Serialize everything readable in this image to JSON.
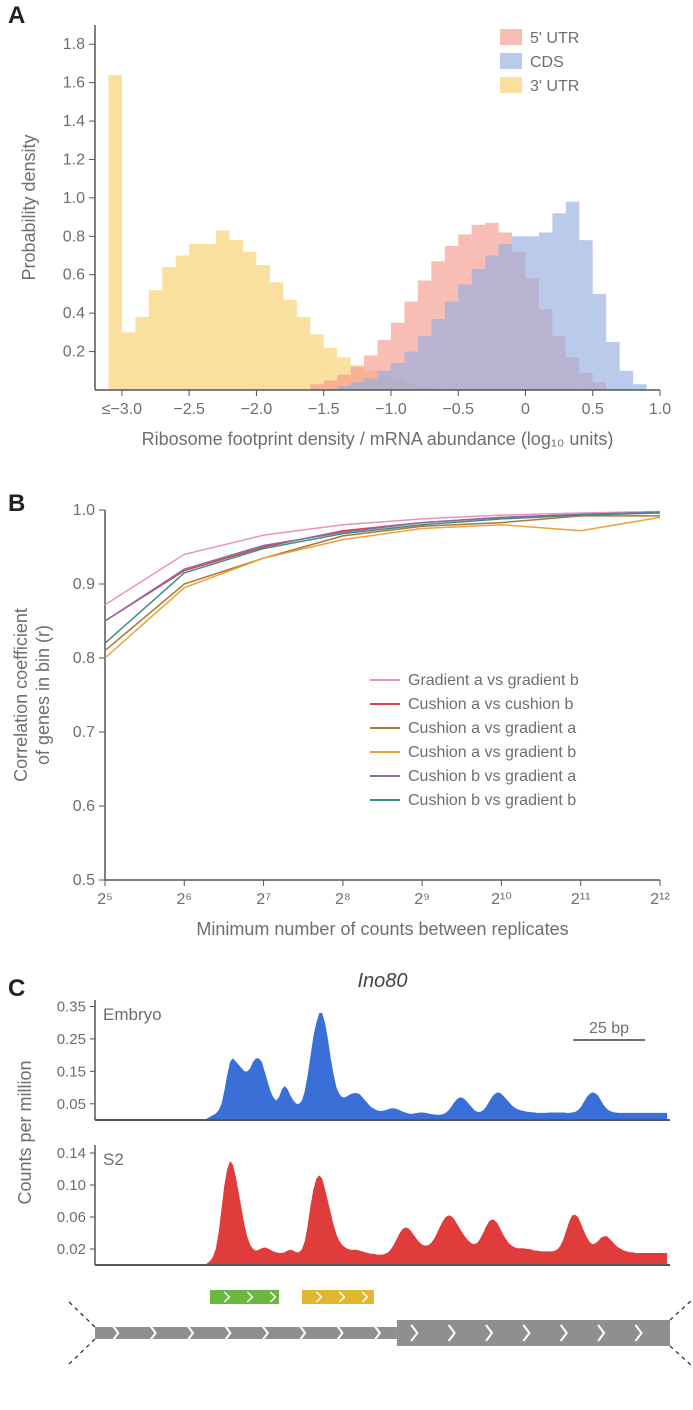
{
  "panelA": {
    "label": "A",
    "type": "histogram",
    "xlabel": "Ribosome footprint density / mRNA abundance (log₁₀ units)",
    "ylabel": "Probability density",
    "label_color": "#6e6e6e",
    "label_fontsize": 18,
    "tick_fontsize": 16,
    "tick_color": "#6e6e6e",
    "axis_color": "#555555",
    "bar_alpha": 0.65,
    "xlim": [
      -3.2,
      1.0
    ],
    "ylim": [
      0,
      1.9
    ],
    "xticks": [
      -3.0,
      -2.5,
      -2.0,
      -1.5,
      -1.0,
      -0.5,
      0,
      0.5,
      1.0
    ],
    "xtick_labels": [
      "≤−3.0",
      "−2.5",
      "−2.0",
      "−1.5",
      "−1.0",
      "−0.5",
      "0",
      "0.5",
      "1.0"
    ],
    "yticks": [
      0.2,
      0.4,
      0.6,
      0.8,
      1.0,
      1.2,
      1.4,
      1.6,
      1.8
    ],
    "bin_width": 0.1,
    "legend": {
      "items": [
        {
          "label": "5' UTR",
          "color": "#f59a8e"
        },
        {
          "label": "CDS",
          "color": "#94aee0"
        },
        {
          "label": "3' UTR",
          "color": "#f7cf6b"
        }
      ],
      "fontsize": 16,
      "text_color": "#6e6e6e"
    },
    "series": [
      {
        "name": "3' UTR",
        "color": "#f7cf6b",
        "bins": [
          [
            -3.1,
            1.64
          ],
          [
            -3.0,
            0.3
          ],
          [
            -2.9,
            0.38
          ],
          [
            -2.8,
            0.52
          ],
          [
            -2.7,
            0.64
          ],
          [
            -2.6,
            0.7
          ],
          [
            -2.5,
            0.76
          ],
          [
            -2.4,
            0.76
          ],
          [
            -2.3,
            0.83
          ],
          [
            -2.2,
            0.78
          ],
          [
            -2.1,
            0.72
          ],
          [
            -2.0,
            0.65
          ],
          [
            -1.9,
            0.56
          ],
          [
            -1.8,
            0.47
          ],
          [
            -1.7,
            0.38
          ],
          [
            -1.6,
            0.29
          ],
          [
            -1.5,
            0.22
          ],
          [
            -1.4,
            0.17
          ],
          [
            -1.3,
            0.13
          ],
          [
            -1.2,
            0.1
          ],
          [
            -1.1,
            0.07
          ],
          [
            -1.0,
            0.05
          ],
          [
            -0.9,
            0.03
          ],
          [
            -0.8,
            0.02
          ]
        ]
      },
      {
        "name": "5' UTR",
        "color": "#f59a8e",
        "bins": [
          [
            -1.6,
            0.03
          ],
          [
            -1.5,
            0.05
          ],
          [
            -1.4,
            0.08
          ],
          [
            -1.3,
            0.12
          ],
          [
            -1.2,
            0.18
          ],
          [
            -1.1,
            0.26
          ],
          [
            -1.0,
            0.35
          ],
          [
            -0.9,
            0.46
          ],
          [
            -0.8,
            0.57
          ],
          [
            -0.7,
            0.67
          ],
          [
            -0.6,
            0.75
          ],
          [
            -0.5,
            0.81
          ],
          [
            -0.4,
            0.86
          ],
          [
            -0.3,
            0.87
          ],
          [
            -0.2,
            0.82
          ],
          [
            -0.1,
            0.72
          ],
          [
            0.0,
            0.58
          ],
          [
            0.1,
            0.42
          ],
          [
            0.2,
            0.28
          ],
          [
            0.3,
            0.17
          ],
          [
            0.4,
            0.09
          ],
          [
            0.5,
            0.04
          ]
        ]
      },
      {
        "name": "CDS",
        "color": "#94aee0",
        "bins": [
          [
            -1.4,
            0.02
          ],
          [
            -1.3,
            0.04
          ],
          [
            -1.2,
            0.06
          ],
          [
            -1.1,
            0.1
          ],
          [
            -1.0,
            0.14
          ],
          [
            -0.9,
            0.2
          ],
          [
            -0.8,
            0.28
          ],
          [
            -0.7,
            0.37
          ],
          [
            -0.6,
            0.46
          ],
          [
            -0.5,
            0.55
          ],
          [
            -0.4,
            0.63
          ],
          [
            -0.3,
            0.7
          ],
          [
            -0.2,
            0.76
          ],
          [
            -0.1,
            0.8
          ],
          [
            0.0,
            0.8
          ],
          [
            0.1,
            0.82
          ],
          [
            0.2,
            0.92
          ],
          [
            0.3,
            0.98
          ],
          [
            0.4,
            0.78
          ],
          [
            0.5,
            0.5
          ],
          [
            0.6,
            0.25
          ],
          [
            0.7,
            0.1
          ],
          [
            0.8,
            0.03
          ]
        ]
      }
    ]
  },
  "panelB": {
    "label": "B",
    "type": "line",
    "xlabel": "Minimum number of counts between replicates",
    "ylabel": "Correlation coefficient\nof genes in bin (r)",
    "label_color": "#6e6e6e",
    "label_fontsize": 18,
    "tick_fontsize": 16,
    "tick_color": "#6e6e6e",
    "axis_color": "#555555",
    "xlim": [
      5,
      12
    ],
    "ylim": [
      0.5,
      1.0
    ],
    "xticks": [
      5,
      6,
      7,
      8,
      9,
      10,
      11,
      12
    ],
    "xtick_labels": [
      "2⁵",
      "2⁶",
      "2⁷",
      "2⁸",
      "2⁹",
      "2¹⁰",
      "2¹¹",
      "2¹²"
    ],
    "yticks": [
      0.5,
      0.6,
      0.7,
      0.8,
      0.9,
      1.0
    ],
    "line_width": 1.5,
    "legend": {
      "fontsize": 16,
      "text_color": "#6e6e6e",
      "swatch_len": 30
    },
    "series": [
      {
        "label": "Gradient a vs gradient b",
        "color": "#e893bd",
        "y": [
          0.872,
          0.94,
          0.966,
          0.98,
          0.988,
          0.993,
          0.996,
          0.998
        ]
      },
      {
        "label": "Cushion a vs cushion b",
        "color": "#d64545",
        "y": [
          0.85,
          0.918,
          0.95,
          0.972,
          0.983,
          0.99,
          0.994,
          0.997
        ]
      },
      {
        "label": "Cushion a vs gradient a",
        "color": "#a97833",
        "y": [
          0.81,
          0.9,
          0.935,
          0.965,
          0.978,
          0.983,
          0.992,
          0.992
        ]
      },
      {
        "label": "Cushion a vs gradient b",
        "color": "#e8a33d",
        "y": [
          0.8,
          0.895,
          0.935,
          0.96,
          0.975,
          0.98,
          0.972,
          0.99
        ]
      },
      {
        "label": "Cushion b vs gradient a",
        "color": "#8b6aa8",
        "y": [
          0.85,
          0.92,
          0.952,
          0.97,
          0.983,
          0.99,
          0.994,
          0.997
        ]
      },
      {
        "label": "Cushion b vs gradient b",
        "color": "#3d8d86",
        "y": [
          0.82,
          0.915,
          0.948,
          0.968,
          0.98,
          0.988,
          0.993,
          0.996
        ]
      }
    ]
  },
  "panelC": {
    "label": "C",
    "title": "Ino80",
    "title_fontsize": 20,
    "title_style": "italic",
    "title_color": "#444444",
    "ylabel": "Counts per million",
    "label_color": "#6e6e6e",
    "label_fontsize": 18,
    "tick_fontsize": 15,
    "tick_color": "#6e6e6e",
    "axis_color": "#555555",
    "scale_bar": {
      "label": "25 bp",
      "color": "#6e6e6e",
      "fontsize": 16
    },
    "xlim": [
      0,
      200
    ],
    "tracks": [
      {
        "name": "Embryo",
        "color": "#3a6fd8",
        "ylim": [
          0,
          0.37
        ],
        "yticks": [
          0.05,
          0.15,
          0.25,
          0.35
        ],
        "values": [
          0,
          0,
          0,
          0,
          0,
          0,
          0,
          0,
          0,
          0,
          0,
          0,
          0,
          0,
          0,
          0,
          0,
          0,
          0,
          0,
          0,
          0,
          0,
          0,
          0,
          0,
          0,
          0,
          0,
          0,
          0,
          0,
          0,
          0,
          0,
          0,
          0,
          0,
          0,
          0.005,
          0.01,
          0.015,
          0.02,
          0.03,
          0.05,
          0.09,
          0.14,
          0.18,
          0.19,
          0.18,
          0.17,
          0.16,
          0.15,
          0.15,
          0.16,
          0.18,
          0.19,
          0.19,
          0.18,
          0.15,
          0.12,
          0.09,
          0.07,
          0.06,
          0.07,
          0.095,
          0.105,
          0.095,
          0.075,
          0.06,
          0.05,
          0.05,
          0.06,
          0.09,
          0.14,
          0.2,
          0.26,
          0.3,
          0.33,
          0.33,
          0.3,
          0.25,
          0.19,
          0.14,
          0.1,
          0.08,
          0.07,
          0.07,
          0.075,
          0.08,
          0.083,
          0.083,
          0.08,
          0.07,
          0.06,
          0.05,
          0.04,
          0.035,
          0.03,
          0.028,
          0.028,
          0.03,
          0.033,
          0.036,
          0.036,
          0.034,
          0.03,
          0.026,
          0.023,
          0.02,
          0.019,
          0.02,
          0.022,
          0.023,
          0.023,
          0.022,
          0.02,
          0.018,
          0.017,
          0.016,
          0.016,
          0.018,
          0.022,
          0.03,
          0.042,
          0.055,
          0.065,
          0.07,
          0.068,
          0.06,
          0.05,
          0.04,
          0.03,
          0.025,
          0.025,
          0.03,
          0.04,
          0.055,
          0.07,
          0.08,
          0.085,
          0.083,
          0.075,
          0.065,
          0.055,
          0.045,
          0.038,
          0.033,
          0.03,
          0.028,
          0.026,
          0.025,
          0.024,
          0.023,
          0.022,
          0.022,
          0.022,
          0.022,
          0.023,
          0.023,
          0.023,
          0.023,
          0.023,
          0.023,
          0.022,
          0.022,
          0.023,
          0.025,
          0.03,
          0.04,
          0.055,
          0.07,
          0.08,
          0.085,
          0.083,
          0.075,
          0.06,
          0.045,
          0.035,
          0.028,
          0.025,
          0.023,
          0.022,
          0.022,
          0.022,
          0.022,
          0.022,
          0.022,
          0.022,
          0.022,
          0.022,
          0.022,
          0.022,
          0.022,
          0.022,
          0.022,
          0.022,
          0.022,
          0.022,
          0.022
        ]
      },
      {
        "name": "S2",
        "color": "#e13c3c",
        "ylim": [
          0,
          0.15
        ],
        "yticks": [
          0.02,
          0.06,
          0.1,
          0.14
        ],
        "values": [
          0,
          0,
          0,
          0,
          0,
          0,
          0,
          0,
          0,
          0,
          0,
          0,
          0,
          0,
          0,
          0,
          0,
          0,
          0,
          0,
          0,
          0,
          0,
          0,
          0,
          0,
          0,
          0,
          0,
          0,
          0,
          0,
          0,
          0,
          0,
          0,
          0,
          0,
          0,
          0.002,
          0.005,
          0.01,
          0.02,
          0.04,
          0.07,
          0.1,
          0.12,
          0.13,
          0.125,
          0.11,
          0.09,
          0.07,
          0.05,
          0.035,
          0.025,
          0.02,
          0.018,
          0.019,
          0.021,
          0.022,
          0.021,
          0.019,
          0.017,
          0.016,
          0.015,
          0.015,
          0.016,
          0.018,
          0.019,
          0.018,
          0.016,
          0.016,
          0.02,
          0.03,
          0.05,
          0.075,
          0.095,
          0.108,
          0.112,
          0.108,
          0.095,
          0.08,
          0.065,
          0.05,
          0.038,
          0.03,
          0.025,
          0.022,
          0.02,
          0.019,
          0.019,
          0.019,
          0.018,
          0.017,
          0.016,
          0.015,
          0.014,
          0.014,
          0.013,
          0.013,
          0.013,
          0.014,
          0.016,
          0.02,
          0.026,
          0.033,
          0.04,
          0.045,
          0.047,
          0.046,
          0.042,
          0.037,
          0.032,
          0.028,
          0.025,
          0.024,
          0.025,
          0.028,
          0.033,
          0.04,
          0.048,
          0.055,
          0.06,
          0.062,
          0.061,
          0.057,
          0.051,
          0.045,
          0.039,
          0.034,
          0.03,
          0.027,
          0.026,
          0.028,
          0.033,
          0.04,
          0.048,
          0.054,
          0.057,
          0.056,
          0.052,
          0.045,
          0.038,
          0.032,
          0.027,
          0.024,
          0.022,
          0.021,
          0.021,
          0.021,
          0.02,
          0.02,
          0.019,
          0.018,
          0.018,
          0.017,
          0.017,
          0.017,
          0.017,
          0.017,
          0.018,
          0.02,
          0.025,
          0.033,
          0.044,
          0.055,
          0.062,
          0.063,
          0.06,
          0.052,
          0.043,
          0.035,
          0.029,
          0.026,
          0.027,
          0.03,
          0.034,
          0.036,
          0.036,
          0.033,
          0.029,
          0.025,
          0.022,
          0.02,
          0.018,
          0.017,
          0.016,
          0.016,
          0.015,
          0.015,
          0.015,
          0.015,
          0.015,
          0.015,
          0.015,
          0.015,
          0.015,
          0.015,
          0.015,
          0.015
        ]
      }
    ],
    "features": {
      "uorf1": {
        "start": 40,
        "end": 64,
        "color": "#6cb742",
        "chev_color": "#ffffff"
      },
      "uorf2": {
        "start": 72,
        "end": 97,
        "color": "#e1b72f",
        "chev_color": "#ffffff"
      },
      "utr5": {
        "start": 0,
        "end": 105
      },
      "cds": {
        "start": 105,
        "end": 200
      },
      "gene_color": "#8f8f8f",
      "chev_color": "#ffffff",
      "dash_color": "#333333"
    }
  }
}
